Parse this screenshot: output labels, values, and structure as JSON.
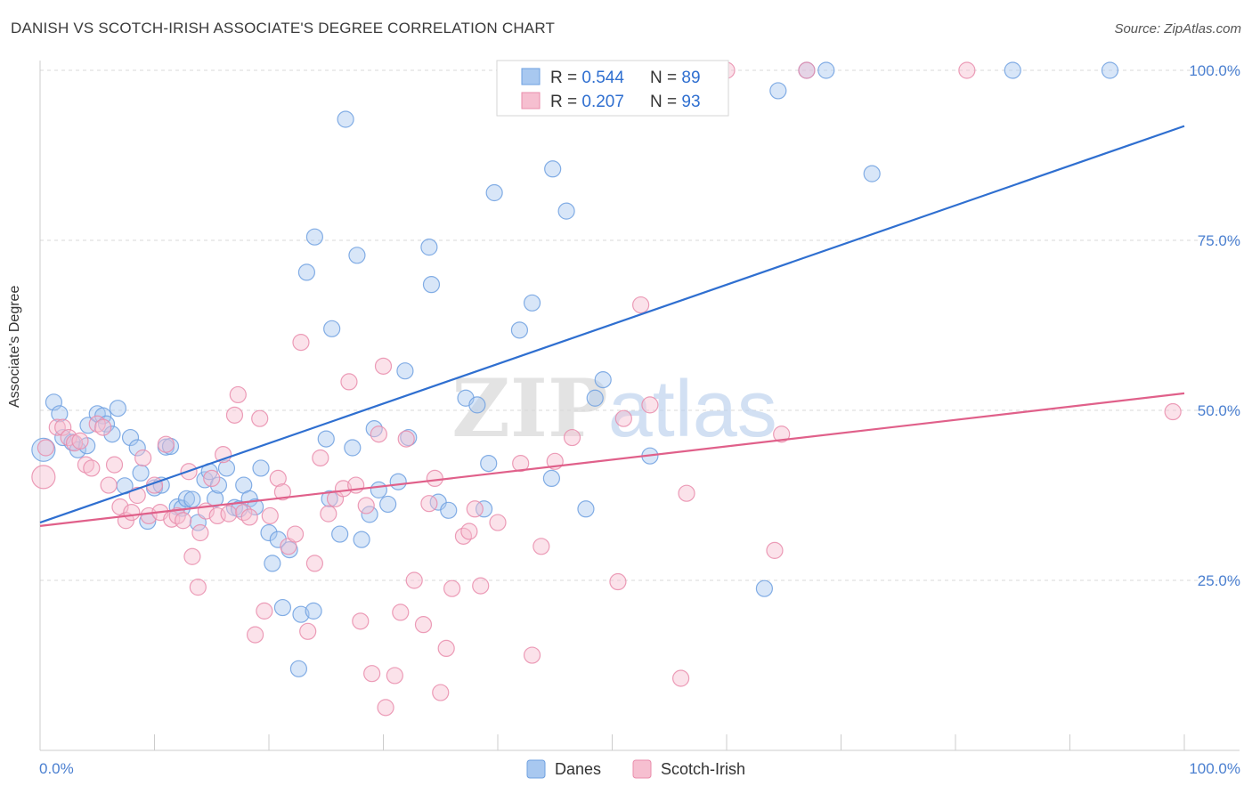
{
  "header": {
    "title": "DANISH VS SCOTCH-IRISH ASSOCIATE'S DEGREE CORRELATION CHART",
    "source": "Source: ZipAtlas.com"
  },
  "watermark": {
    "part1": "ZIP",
    "part2": "atlas"
  },
  "colors": {
    "blue": "#6ea0e0",
    "blue_fill": "#a8c8f0",
    "blue_line": "#2f6fd0",
    "pink": "#e98cab",
    "pink_fill": "#f6bfd0",
    "pink_line": "#e0608a",
    "tick_label": "#4a7fd0"
  },
  "chart_data": {
    "type": "scatter",
    "title": "DANISH VS SCOTCH-IRISH ASSOCIATE'S DEGREE CORRELATION CHART",
    "xlabel": "",
    "ylabel": "Associate's Degree",
    "xlim": [
      0,
      100
    ],
    "ylim": [
      0,
      100
    ],
    "x_tick_labels": [
      "0.0%",
      "100.0%"
    ],
    "y_ticks": [
      25,
      50,
      75,
      100
    ],
    "y_tick_labels": [
      "25.0%",
      "50.0%",
      "75.0%",
      "100.0%"
    ],
    "grid": true,
    "legend_box": {
      "rows": [
        {
          "r_label": "R = ",
          "r_value": "0.544",
          "n_label": "N = ",
          "n_value": "89"
        },
        {
          "r_label": "R = ",
          "r_value": "0.207",
          "n_label": "N = ",
          "n_value": "93"
        }
      ]
    },
    "legend_bottom": [
      "Danes",
      "Scotch-Irish"
    ],
    "series": [
      {
        "name": "Danes",
        "trend": {
          "x": [
            0,
            100
          ],
          "y": [
            33.5,
            91.8
          ]
        },
        "points": [
          [
            0.3,
            44.2
          ],
          [
            1.2,
            51.2
          ],
          [
            1.7,
            49.5
          ],
          [
            2.0,
            46.0
          ],
          [
            2.8,
            45.3
          ],
          [
            3.3,
            44.2
          ],
          [
            4.1,
            44.8
          ],
          [
            4.2,
            47.8
          ],
          [
            5.0,
            49.5
          ],
          [
            5.5,
            49.2
          ],
          [
            5.8,
            48.0
          ],
          [
            6.3,
            46.5
          ],
          [
            6.8,
            50.3
          ],
          [
            7.4,
            38.9
          ],
          [
            7.9,
            46.0
          ],
          [
            8.5,
            44.5
          ],
          [
            8.8,
            40.8
          ],
          [
            9.4,
            33.7
          ],
          [
            10.0,
            38.6
          ],
          [
            10.6,
            39.0
          ],
          [
            11.0,
            44.6
          ],
          [
            11.4,
            44.7
          ],
          [
            12.0,
            35.8
          ],
          [
            12.4,
            35.6
          ],
          [
            12.8,
            37.0
          ],
          [
            13.3,
            36.9
          ],
          [
            13.8,
            33.5
          ],
          [
            14.4,
            39.8
          ],
          [
            14.8,
            41.0
          ],
          [
            15.3,
            37.0
          ],
          [
            15.6,
            39.0
          ],
          [
            16.3,
            41.5
          ],
          [
            17.0,
            35.7
          ],
          [
            17.4,
            35.5
          ],
          [
            17.8,
            39.0
          ],
          [
            18.3,
            37.0
          ],
          [
            18.8,
            35.8
          ],
          [
            19.3,
            41.5
          ],
          [
            20.0,
            32.0
          ],
          [
            20.3,
            27.5
          ],
          [
            20.8,
            31.0
          ],
          [
            21.2,
            21.0
          ],
          [
            21.8,
            29.5
          ],
          [
            22.6,
            12.0
          ],
          [
            22.8,
            20.0
          ],
          [
            23.3,
            70.3
          ],
          [
            23.9,
            20.5
          ],
          [
            24.0,
            75.5
          ],
          [
            25.0,
            45.8
          ],
          [
            25.3,
            37.0
          ],
          [
            25.5,
            62.0
          ],
          [
            26.2,
            31.8
          ],
          [
            26.7,
            92.8
          ],
          [
            27.3,
            44.5
          ],
          [
            27.7,
            72.8
          ],
          [
            28.1,
            31.0
          ],
          [
            28.8,
            34.7
          ],
          [
            29.2,
            47.3
          ],
          [
            29.6,
            38.3
          ],
          [
            30.4,
            36.2
          ],
          [
            31.3,
            39.5
          ],
          [
            31.9,
            55.8
          ],
          [
            32.2,
            46.0
          ],
          [
            34.0,
            74.0
          ],
          [
            34.2,
            68.5
          ],
          [
            34.8,
            36.5
          ],
          [
            35.7,
            35.3
          ],
          [
            37.2,
            51.8
          ],
          [
            38.2,
            50.8
          ],
          [
            38.8,
            35.5
          ],
          [
            39.2,
            42.2
          ],
          [
            39.7,
            82.0
          ],
          [
            41.9,
            61.8
          ],
          [
            43.0,
            65.8
          ],
          [
            44.7,
            40.0
          ],
          [
            44.8,
            85.5
          ],
          [
            46.0,
            79.3
          ],
          [
            47.7,
            35.5
          ],
          [
            48.5,
            51.8
          ],
          [
            49.2,
            54.5
          ],
          [
            53.3,
            43.3
          ],
          [
            58.2,
            100.0
          ],
          [
            63.3,
            23.8
          ],
          [
            64.5,
            97.0
          ],
          [
            67.0,
            100.0
          ],
          [
            68.7,
            100.0
          ],
          [
            72.7,
            84.8
          ],
          [
            85.0,
            100.0
          ],
          [
            93.5,
            100.0
          ]
        ]
      },
      {
        "name": "Scotch-Irish",
        "trend": {
          "x": [
            0,
            100
          ],
          "y": [
            33.0,
            52.5
          ]
        },
        "points": [
          [
            0.3,
            40.2
          ],
          [
            0.5,
            44.5
          ],
          [
            1.5,
            47.5
          ],
          [
            2.0,
            47.5
          ],
          [
            2.5,
            46.0
          ],
          [
            3.0,
            45.2
          ],
          [
            3.5,
            45.5
          ],
          [
            4.0,
            42.0
          ],
          [
            4.5,
            41.5
          ],
          [
            5.0,
            48.0
          ],
          [
            5.5,
            47.5
          ],
          [
            6.0,
            39.0
          ],
          [
            6.5,
            42.0
          ],
          [
            7.0,
            35.8
          ],
          [
            7.5,
            33.8
          ],
          [
            8.0,
            35.0
          ],
          [
            8.5,
            37.5
          ],
          [
            9.0,
            43.0
          ],
          [
            9.5,
            34.5
          ],
          [
            10.0,
            39.0
          ],
          [
            10.5,
            35.0
          ],
          [
            11.0,
            45.0
          ],
          [
            11.5,
            34.0
          ],
          [
            12.0,
            34.5
          ],
          [
            12.5,
            33.8
          ],
          [
            13.0,
            41.0
          ],
          [
            13.3,
            28.5
          ],
          [
            13.8,
            24.0
          ],
          [
            14.0,
            32.0
          ],
          [
            14.5,
            35.2
          ],
          [
            15.0,
            40.0
          ],
          [
            15.5,
            34.5
          ],
          [
            16.0,
            43.5
          ],
          [
            16.5,
            34.8
          ],
          [
            17.0,
            49.3
          ],
          [
            17.3,
            52.3
          ],
          [
            17.8,
            35.0
          ],
          [
            18.3,
            34.3
          ],
          [
            18.8,
            17.0
          ],
          [
            19.2,
            48.8
          ],
          [
            19.6,
            20.5
          ],
          [
            20.1,
            34.5
          ],
          [
            20.8,
            40.0
          ],
          [
            21.2,
            38.0
          ],
          [
            21.7,
            30.0
          ],
          [
            22.3,
            31.8
          ],
          [
            22.8,
            60.0
          ],
          [
            23.4,
            17.5
          ],
          [
            24.0,
            27.5
          ],
          [
            24.5,
            43.0
          ],
          [
            25.2,
            34.8
          ],
          [
            25.8,
            37.0
          ],
          [
            26.5,
            38.5
          ],
          [
            27.0,
            54.2
          ],
          [
            27.6,
            39.0
          ],
          [
            28.0,
            19.0
          ],
          [
            28.5,
            36.0
          ],
          [
            29.0,
            11.3
          ],
          [
            29.6,
            46.5
          ],
          [
            30.0,
            56.5
          ],
          [
            30.2,
            6.3
          ],
          [
            31.0,
            11.0
          ],
          [
            31.5,
            20.3
          ],
          [
            32.0,
            45.8
          ],
          [
            32.7,
            25.0
          ],
          [
            33.5,
            18.5
          ],
          [
            34.0,
            36.3
          ],
          [
            34.5,
            40.0
          ],
          [
            35.0,
            8.5
          ],
          [
            35.5,
            15.0
          ],
          [
            36.0,
            23.8
          ],
          [
            37.0,
            31.5
          ],
          [
            37.5,
            32.2
          ],
          [
            38.0,
            35.5
          ],
          [
            38.5,
            24.2
          ],
          [
            40.0,
            33.5
          ],
          [
            42.0,
            42.2
          ],
          [
            43.0,
            14.0
          ],
          [
            43.8,
            30.0
          ],
          [
            45.0,
            42.5
          ],
          [
            46.5,
            46.0
          ],
          [
            50.5,
            24.8
          ],
          [
            51.0,
            48.8
          ],
          [
            52.5,
            65.5
          ],
          [
            53.3,
            50.8
          ],
          [
            56.0,
            10.6
          ],
          [
            56.5,
            37.8
          ],
          [
            60.0,
            100.0
          ],
          [
            64.2,
            29.4
          ],
          [
            64.8,
            46.5
          ],
          [
            67.0,
            100.0
          ],
          [
            81.0,
            100.0
          ],
          [
            99.0,
            49.8
          ]
        ]
      }
    ]
  }
}
